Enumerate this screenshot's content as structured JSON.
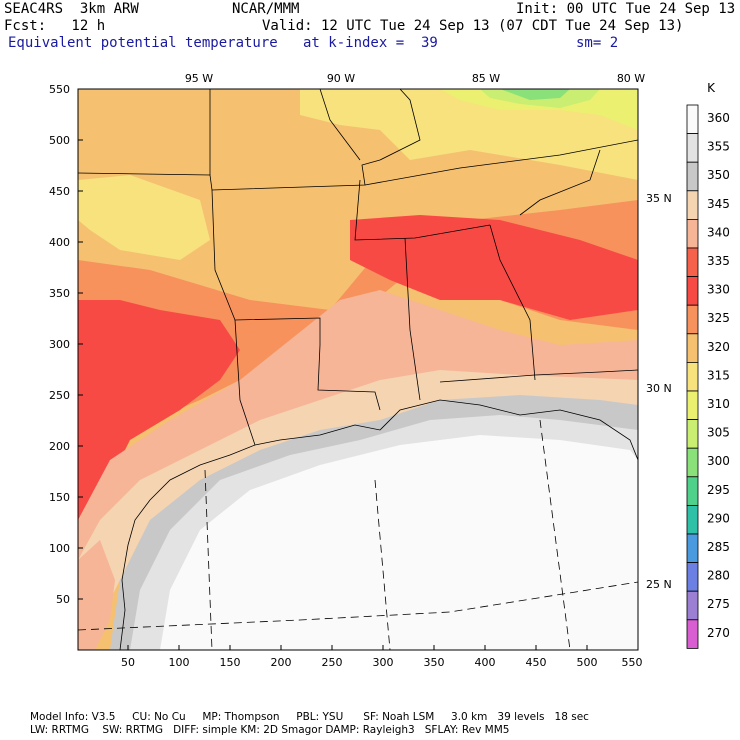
{
  "header": {
    "model": "SEAC4RS  3km ARW",
    "org": "NCAR/MMM",
    "init": "Init: 00 UTC Tue 24 Sep 13",
    "fcst": "Fcst:   12 h",
    "valid": "Valid: 12 UTC Tue 24 Sep 13 (07 CDT Tue 24 Sep 13)",
    "field": "Equivalent potential temperature",
    "level": "at k-index =  39",
    "smooth": "sm= 2"
  },
  "map": {
    "x_ticks": [
      "50",
      "100",
      "150",
      "200",
      "250",
      "300",
      "350",
      "400",
      "450",
      "500",
      "550"
    ],
    "y_ticks": [
      "550",
      "500",
      "450",
      "400",
      "350",
      "300",
      "250",
      "200",
      "150",
      "100",
      "50"
    ],
    "lon_labels": [
      "95 W",
      "90 W",
      "85 W",
      "80 W"
    ],
    "lat_labels": [
      "35 N",
      "30 N",
      "25 N"
    ]
  },
  "colorbar": {
    "unit": "K",
    "levels": [
      "360",
      "355",
      "350",
      "345",
      "340",
      "335",
      "330",
      "325",
      "320",
      "315",
      "310",
      "305",
      "300",
      "295",
      "290",
      "285",
      "280",
      "275",
      "270"
    ],
    "colors": {
      "c360": "#fafafa",
      "c355": "#e3e3e3",
      "c350": "#c8c8c8",
      "c345": "#f5d4b2",
      "c340": "#f6b597",
      "c335": "#f5614a",
      "c330": "#f84a45",
      "c325": "#f7925d",
      "c320": "#f5c070",
      "c315": "#f7e27d",
      "c310": "#ecf070",
      "c305": "#c9ee72",
      "c300": "#8ae17a",
      "c295": "#4fd18b",
      "c290": "#2fc0a8",
      "c285": "#4a9ae0",
      "c280": "#6c80e3",
      "c275": "#9a7fd2",
      "c270": "#d85ed2"
    }
  },
  "footer": {
    "line1": "Model Info: V3.5     CU: No Cu     MP: Thompson     PBL: YSU      SF: Noah LSM     3.0 km   39 levels   18 sec",
    "line2": "LW: RRTMG    SW: RRTMG   DIFF: simple KM: 2D Smagor DAMP: Rayleigh3   SFLAY: Rev MM5"
  }
}
